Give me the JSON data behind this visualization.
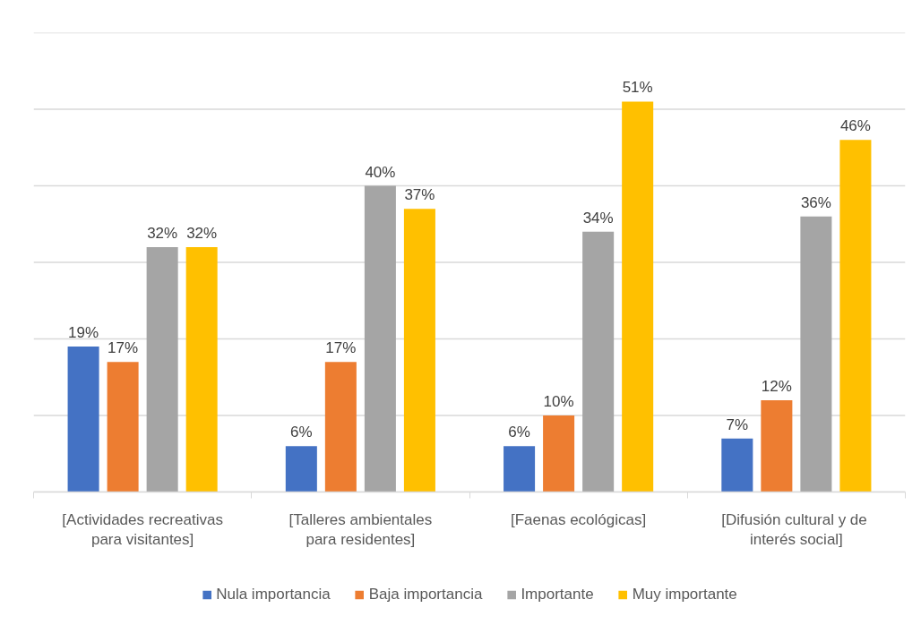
{
  "chart_data": {
    "type": "bar",
    "categories": [
      "[Actividades recreativas para visitantes]",
      "[Talleres ambientales para residentes]",
      "[Faenas ecológicas]",
      "[Difusión cultural y  de interés social]"
    ],
    "series": [
      {
        "name": "Nula importancia",
        "color": "#4472c4",
        "values": [
          19,
          6,
          6,
          7
        ],
        "value_labels": [
          "19%",
          "6%",
          "6%",
          "7%"
        ]
      },
      {
        "name": "Baja importancia",
        "color": "#ed7d31",
        "values": [
          17,
          17,
          10,
          12
        ],
        "value_labels": [
          "17%",
          "17%",
          "10%",
          "12%"
        ]
      },
      {
        "name": "Importante",
        "color": "#a5a5a5",
        "values": [
          32,
          40,
          34,
          36
        ],
        "value_labels": [
          "32%",
          "40%",
          "34%",
          "36%"
        ]
      },
      {
        "name": "Muy importante",
        "color": "#ffc000",
        "values": [
          32,
          37,
          51,
          46
        ],
        "value_labels": [
          "32%",
          "37%",
          "51%",
          "46%"
        ]
      }
    ],
    "ylim": [
      0,
      60
    ],
    "yticks": [
      {
        "value": 0,
        "label": null
      },
      {
        "value": 10,
        "label": null
      },
      {
        "value": 20,
        "label": null
      },
      {
        "value": 30,
        "label": null
      },
      {
        "value": 40,
        "label": null
      },
      {
        "value": 50,
        "label": null
      },
      {
        "value": 60,
        "label": null
      }
    ],
    "tick_labels": "x",
    "grid": "y",
    "legend": "bottom"
  }
}
